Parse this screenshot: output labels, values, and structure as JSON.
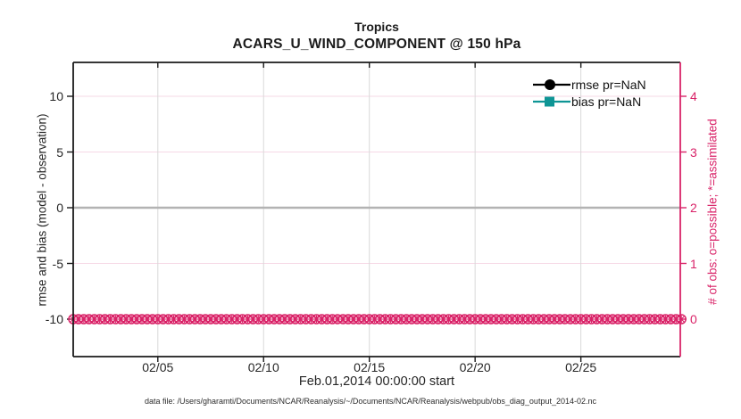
{
  "figure": {
    "title_line1": "Tropics",
    "title_line2": "ACARS_U_WIND_COMPONENT @ 150 hPa",
    "xlabel": "Feb.01,2014 00:00:00 start",
    "ylabel_left": "rmse and bias (model - observation)",
    "ylabel_right": "# of obs: o=possible; *=assimilated",
    "annotation": "data file: /Users/gharamti/Documents/NCAR/Reanalysis/~/Documents/NCAR/Reanalysis/webpub/obs_diag_output_2014-02.nc"
  },
  "legend": {
    "items": [
      {
        "label": "rmse pr=NaN",
        "color": "#000000",
        "marker": "circle"
      },
      {
        "label": "bias pr=NaN",
        "color": "#0e9595",
        "marker": "square"
      }
    ]
  },
  "colors": {
    "accent_pink": "#d92368",
    "grid_pink": "#f6d9e6",
    "grid_gray": "#d9d9d9",
    "zero_line_gray": "#b3b3b3",
    "spine_dark": "#1a1a1a",
    "text_dark": "#262626",
    "bias_teal": "#0e9595",
    "rmse_black": "#000000"
  },
  "chart_data": {
    "type": "line",
    "title": "Tropics",
    "subtitle": "ACARS_U_WIND_COMPONENT @ 150 hPa",
    "xlabel": "Feb.01,2014 00:00:00 start",
    "ylabel_left": "rmse and bias (model - observation)",
    "ylabel_right": "# of obs: o=possible; *=assimilated",
    "grid": true,
    "legend_position": "top-right-inside-no-box",
    "xlim_days": [
      0,
      28.7
    ],
    "x_epoch": "2014-02-01 00:00:00",
    "x_ticks": [
      {
        "day": 4,
        "label": "02/05"
      },
      {
        "day": 9,
        "label": "02/10"
      },
      {
        "day": 14,
        "label": "02/15"
      },
      {
        "day": 19,
        "label": "02/20"
      },
      {
        "day": 24,
        "label": "02/25"
      }
    ],
    "ylim_left": [
      -13.36,
      13.04
    ],
    "ylim_right": [
      -0.672,
      4.608
    ],
    "yticks_left": [
      10,
      5,
      0,
      -5,
      -10
    ],
    "yticks_right": [
      4,
      3,
      2,
      1,
      0
    ],
    "zero_line": {
      "value": 0,
      "color": "#b3b3b3"
    },
    "series": [
      {
        "name": "rmse pr=NaN",
        "axis": "left",
        "color": "#000000",
        "marker": "filled-circle",
        "values": "all NaN (no curve drawn)"
      },
      {
        "name": "bias pr=NaN",
        "axis": "left",
        "color": "#0e9595",
        "marker": "filled-square",
        "values": "all NaN (no curve drawn)"
      },
      {
        "name": "# of obs possible (o)",
        "axis": "right",
        "color": "#d92368",
        "marker": "open-circle",
        "constant_value": 0
      },
      {
        "name": "# of obs assimilated (*)",
        "axis": "right",
        "color": "#d92368",
        "marker": "asterisk",
        "constant_value": 0
      }
    ],
    "time_points": {
      "start_day": 0,
      "step_days": 0.25,
      "count": 116
    }
  }
}
